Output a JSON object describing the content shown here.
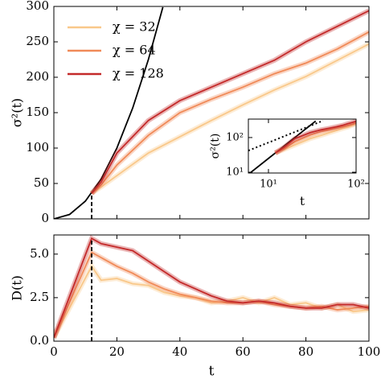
{
  "chart_data": [
    {
      "type": "line",
      "ylabel": "σ²(t)",
      "xlim": [
        0,
        100
      ],
      "ylim": [
        0,
        300
      ],
      "xticks": [
        0,
        20,
        40,
        60,
        80,
        100
      ],
      "show_xtick_labels": false,
      "yticks": [
        0,
        50,
        100,
        150,
        200,
        250,
        300
      ],
      "legend": "upper left",
      "vline_x": 12,
      "vline_y": 36,
      "series": [
        {
          "color": "#000000",
          "x": [
            0,
            5,
            10,
            15,
            20,
            25,
            30,
            34.6
          ],
          "values": [
            0,
            6.25,
            25,
            56.25,
            100,
            156.25,
            225,
            299
          ]
        },
        {
          "name": "χ = 32",
          "color": "#f9c88a",
          "x": [
            12,
            15,
            20,
            30,
            40,
            50,
            60,
            70,
            80,
            90,
            100
          ],
          "values": [
            36,
            45,
            61,
            93,
            116,
            139,
            161,
            182,
            201,
            224,
            247
          ]
        },
        {
          "name": "χ = 64",
          "color": "#f08a58",
          "x": [
            12,
            15,
            20,
            30,
            40,
            50,
            60,
            70,
            80,
            90,
            100
          ],
          "values": [
            36,
            48,
            76,
            118,
            150,
            169,
            186,
            205,
            220,
            240,
            264
          ]
        },
        {
          "name": "χ = 128",
          "color": "#c42a2a",
          "x": [
            12,
            15,
            20,
            30,
            40,
            50,
            60,
            70,
            80,
            90,
            100
          ],
          "values": [
            36,
            52,
            93,
            139,
            167,
            186,
            205,
            224,
            250,
            272,
            294
          ]
        }
      ]
    },
    {
      "type": "line",
      "xlabel": "t",
      "ylabel": "D(t)",
      "xlim": [
        0,
        100
      ],
      "ylim": [
        0,
        6.1
      ],
      "xticks": [
        0,
        20,
        40,
        60,
        80,
        100
      ],
      "yticks": [
        {
          "value": 0,
          "label": "0.0"
        },
        {
          "value": 2.5,
          "label": "2.5"
        },
        {
          "value": 5,
          "label": "5.0"
        }
      ],
      "vline_x": 12,
      "vline_y": 5.9,
      "series": [
        {
          "color": "#f9c88a",
          "x": [
            0,
            12,
            15,
            20,
            25,
            30,
            35,
            40,
            45,
            50,
            55,
            60,
            65,
            70,
            75,
            80,
            85,
            90,
            95,
            100
          ],
          "values": [
            0.2,
            4.3,
            3.5,
            3.6,
            3.3,
            3.2,
            2.8,
            2.6,
            2.5,
            2.2,
            2.3,
            2.5,
            2.2,
            2.5,
            2.1,
            2.2,
            1.9,
            2.1,
            1.7,
            1.8
          ]
        },
        {
          "color": "#f08a58",
          "x": [
            0,
            12,
            15,
            20,
            25,
            30,
            35,
            40,
            45,
            50,
            55,
            60,
            65,
            70,
            75,
            80,
            85,
            90,
            95,
            100
          ],
          "values": [
            0.2,
            5.1,
            4.8,
            4.3,
            3.9,
            3.4,
            3.0,
            2.7,
            2.5,
            2.3,
            2.2,
            2.2,
            2.3,
            2.1,
            2.0,
            1.9,
            2.0,
            1.8,
            1.9,
            2.0
          ]
        },
        {
          "color": "#c42a2a",
          "x": [
            0,
            12,
            15,
            20,
            25,
            30,
            35,
            40,
            45,
            50,
            55,
            60,
            65,
            70,
            75,
            80,
            85,
            90,
            95,
            100
          ],
          "values": [
            0.2,
            5.9,
            5.6,
            5.4,
            5.2,
            4.6,
            4.0,
            3.4,
            3.0,
            2.6,
            2.3,
            2.2,
            2.3,
            2.2,
            2.0,
            1.9,
            1.9,
            2.1,
            2.1,
            1.9
          ]
        }
      ]
    },
    {
      "type": "line",
      "xlabel": "t",
      "ylabel": "σ²(t)",
      "xscale": "log",
      "yscale": "log",
      "xlim": [
        5.9,
        100
      ],
      "ylim": [
        9.5,
        340
      ],
      "xticks": [
        {
          "value": 10,
          "label": "10¹"
        },
        {
          "value": 100,
          "label": "10²"
        }
      ],
      "yticks": [
        {
          "value": 10,
          "label": "10¹"
        },
        {
          "value": 100,
          "label": "10²"
        }
      ],
      "series": [
        {
          "color": "#000000",
          "style": "dotted",
          "x": [
            5.9,
            42
          ],
          "values": [
            42,
            306
          ]
        },
        {
          "color": "#000000",
          "x": [
            5.9,
            10,
            20,
            34.6
          ],
          "values": [
            8.7,
            25,
            100,
            299
          ]
        },
        {
          "color": "#f9c88a",
          "x": [
            12,
            15,
            20,
            30,
            40,
            50,
            60,
            70,
            80,
            90,
            100
          ],
          "values": [
            36,
            45,
            61,
            93,
            116,
            139,
            161,
            182,
            201,
            224,
            247
          ]
        },
        {
          "color": "#f08a58",
          "x": [
            12,
            15,
            20,
            30,
            40,
            50,
            60,
            70,
            80,
            90,
            100
          ],
          "values": [
            36,
            48,
            76,
            118,
            150,
            169,
            186,
            205,
            220,
            240,
            264
          ]
        },
        {
          "color": "#c42a2a",
          "x": [
            12,
            15,
            20,
            30,
            40,
            50,
            60,
            70,
            80,
            90,
            100
          ],
          "values": [
            36,
            52,
            93,
            139,
            167,
            186,
            205,
            224,
            250,
            272,
            294
          ]
        }
      ]
    }
  ]
}
